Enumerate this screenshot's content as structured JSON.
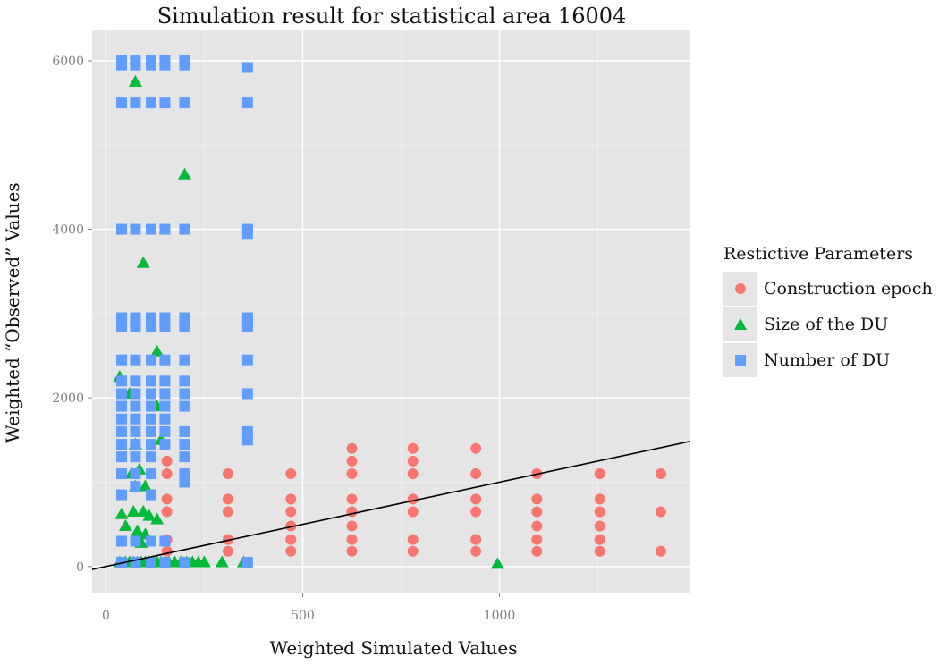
{
  "chart_data": {
    "type": "scatter",
    "title": "Simulation result for statistical area 16004",
    "xlabel": "Weighted Simulated Values",
    "ylabel": "Weighted “Observed” Values",
    "xlim": [
      -35,
      1485
    ],
    "ylim": [
      -310,
      6360
    ],
    "x_ticks": [
      0,
      500,
      1000
    ],
    "y_ticks": [
      0,
      2000,
      4000,
      6000
    ],
    "grid": true,
    "legend_position": "right",
    "legend_title": "Restictive Parameters",
    "reference_line": {
      "slope": 1,
      "intercept": 0
    },
    "series": [
      {
        "name": "Construction epoch",
        "marker": "circle",
        "color": "#f8766d",
        "points": [
          [
            155,
            1250
          ],
          [
            155,
            1100
          ],
          [
            155,
            800
          ],
          [
            155,
            650
          ],
          [
            155,
            320
          ],
          [
            155,
            180
          ],
          [
            310,
            1100
          ],
          [
            310,
            800
          ],
          [
            310,
            650
          ],
          [
            310,
            320
          ],
          [
            310,
            180
          ],
          [
            470,
            1100
          ],
          [
            470,
            800
          ],
          [
            470,
            650
          ],
          [
            470,
            480
          ],
          [
            470,
            320
          ],
          [
            470,
            180
          ],
          [
            625,
            1400
          ],
          [
            625,
            1250
          ],
          [
            625,
            1100
          ],
          [
            625,
            800
          ],
          [
            625,
            650
          ],
          [
            625,
            480
          ],
          [
            625,
            320
          ],
          [
            625,
            180
          ],
          [
            780,
            1400
          ],
          [
            780,
            1250
          ],
          [
            780,
            1100
          ],
          [
            780,
            800
          ],
          [
            780,
            650
          ],
          [
            780,
            320
          ],
          [
            780,
            180
          ],
          [
            940,
            1400
          ],
          [
            940,
            1100
          ],
          [
            940,
            800
          ],
          [
            940,
            650
          ],
          [
            940,
            320
          ],
          [
            940,
            180
          ],
          [
            1095,
            1100
          ],
          [
            1095,
            800
          ],
          [
            1095,
            650
          ],
          [
            1095,
            480
          ],
          [
            1095,
            320
          ],
          [
            1095,
            180
          ],
          [
            1255,
            1100
          ],
          [
            1255,
            800
          ],
          [
            1255,
            650
          ],
          [
            1255,
            480
          ],
          [
            1255,
            320
          ],
          [
            1255,
            180
          ],
          [
            1410,
            1100
          ],
          [
            1410,
            650
          ],
          [
            1410,
            180
          ]
        ]
      },
      {
        "name": "Size of the DU",
        "marker": "triangle",
        "color": "#00ba38",
        "points": [
          [
            75,
            5750
          ],
          [
            200,
            4650
          ],
          [
            95,
            3600
          ],
          [
            130,
            2550
          ],
          [
            35,
            2250
          ],
          [
            60,
            2050
          ],
          [
            130,
            1900
          ],
          [
            75,
            1450
          ],
          [
            140,
            1500
          ],
          [
            65,
            1100
          ],
          [
            85,
            1150
          ],
          [
            75,
            950
          ],
          [
            100,
            950
          ],
          [
            40,
            620
          ],
          [
            70,
            650
          ],
          [
            95,
            650
          ],
          [
            110,
            600
          ],
          [
            130,
            560
          ],
          [
            50,
            480
          ],
          [
            80,
            420
          ],
          [
            100,
            380
          ],
          [
            90,
            280
          ],
          [
            35,
            50
          ],
          [
            50,
            50
          ],
          [
            60,
            50
          ],
          [
            70,
            50
          ],
          [
            80,
            50
          ],
          [
            90,
            50
          ],
          [
            100,
            50
          ],
          [
            110,
            50
          ],
          [
            120,
            50
          ],
          [
            130,
            50
          ],
          [
            140,
            50
          ],
          [
            150,
            50
          ],
          [
            160,
            50
          ],
          [
            175,
            50
          ],
          [
            190,
            50
          ],
          [
            205,
            50
          ],
          [
            220,
            50
          ],
          [
            235,
            50
          ],
          [
            250,
            50
          ],
          [
            295,
            50
          ],
          [
            350,
            50
          ],
          [
            995,
            30
          ]
        ]
      },
      {
        "name": "Number of DU",
        "marker": "square",
        "color": "#619cff",
        "points": [
          [
            40,
            6000
          ],
          [
            40,
            5950
          ],
          [
            75,
            6000
          ],
          [
            75,
            5950
          ],
          [
            115,
            6000
          ],
          [
            115,
            5950
          ],
          [
            150,
            6000
          ],
          [
            150,
            5950
          ],
          [
            200,
            6000
          ],
          [
            200,
            5950
          ],
          [
            360,
            5920
          ],
          [
            40,
            5500
          ],
          [
            75,
            5500
          ],
          [
            115,
            5500
          ],
          [
            150,
            5500
          ],
          [
            200,
            5500
          ],
          [
            360,
            5500
          ],
          [
            40,
            4000
          ],
          [
            75,
            4000
          ],
          [
            115,
            4000
          ],
          [
            150,
            4000
          ],
          [
            200,
            4000
          ],
          [
            360,
            4000
          ],
          [
            360,
            3950
          ],
          [
            40,
            2950
          ],
          [
            40,
            2900
          ],
          [
            40,
            2850
          ],
          [
            75,
            2950
          ],
          [
            75,
            2900
          ],
          [
            75,
            2850
          ],
          [
            115,
            2950
          ],
          [
            115,
            2900
          ],
          [
            115,
            2850
          ],
          [
            150,
            2950
          ],
          [
            150,
            2900
          ],
          [
            150,
            2850
          ],
          [
            200,
            2950
          ],
          [
            200,
            2900
          ],
          [
            200,
            2850
          ],
          [
            360,
            2950
          ],
          [
            360,
            2900
          ],
          [
            360,
            2850
          ],
          [
            40,
            2450
          ],
          [
            75,
            2450
          ],
          [
            115,
            2450
          ],
          [
            150,
            2450
          ],
          [
            200,
            2450
          ],
          [
            360,
            2450
          ],
          [
            40,
            2200
          ],
          [
            40,
            2050
          ],
          [
            40,
            1900
          ],
          [
            40,
            1750
          ],
          [
            40,
            1600
          ],
          [
            40,
            1450
          ],
          [
            40,
            1300
          ],
          [
            40,
            1100
          ],
          [
            40,
            850
          ],
          [
            75,
            2200
          ],
          [
            75,
            2050
          ],
          [
            75,
            1900
          ],
          [
            75,
            1750
          ],
          [
            75,
            1600
          ],
          [
            75,
            1450
          ],
          [
            75,
            1300
          ],
          [
            75,
            1100
          ],
          [
            75,
            950
          ],
          [
            115,
            2200
          ],
          [
            115,
            2050
          ],
          [
            115,
            1900
          ],
          [
            115,
            1750
          ],
          [
            115,
            1600
          ],
          [
            115,
            1450
          ],
          [
            115,
            1300
          ],
          [
            115,
            1100
          ],
          [
            115,
            850
          ],
          [
            150,
            2200
          ],
          [
            150,
            2050
          ],
          [
            150,
            1900
          ],
          [
            150,
            1750
          ],
          [
            150,
            1600
          ],
          [
            150,
            1450
          ],
          [
            200,
            2200
          ],
          [
            200,
            2050
          ],
          [
            200,
            1900
          ],
          [
            200,
            1600
          ],
          [
            200,
            1450
          ],
          [
            200,
            1300
          ],
          [
            200,
            1100
          ],
          [
            200,
            1000
          ],
          [
            360,
            2050
          ],
          [
            360,
            1600
          ],
          [
            360,
            1500
          ],
          [
            40,
            300
          ],
          [
            40,
            50
          ],
          [
            75,
            300
          ],
          [
            75,
            50
          ],
          [
            115,
            300
          ],
          [
            115,
            50
          ],
          [
            150,
            300
          ],
          [
            150,
            50
          ],
          [
            200,
            50
          ],
          [
            360,
            50
          ]
        ]
      }
    ]
  }
}
